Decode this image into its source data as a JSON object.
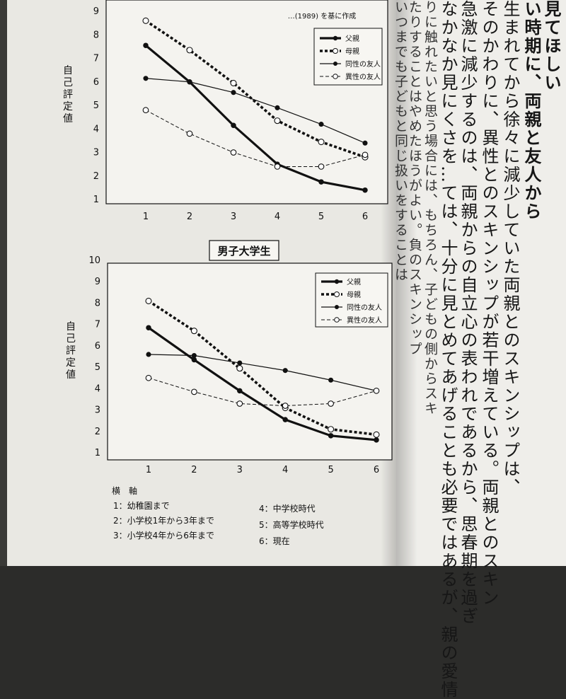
{
  "top_chart": {
    "source_note": "…(1989) を基に作成",
    "y_label": "自己評定値",
    "legend": [
      "父親",
      "母親",
      "同性の友人",
      "異性の友人"
    ]
  },
  "bottom_chart": {
    "title": "男子大学生",
    "y_label": "自己評定値",
    "legend": [
      "父親",
      "母親",
      "同性の友人",
      "異性の友人"
    ]
  },
  "x_axis_caption": {
    "heading": "横　軸",
    "items": [
      "1：幼稚園まで",
      "2：小学校1年から3年まで",
      "3：小学校4年から6年まで",
      "4：中学校時代",
      "5：高等学校時代",
      "6：現在"
    ]
  },
  "chart_data": [
    {
      "type": "line",
      "x": [
        1,
        2,
        3,
        4,
        5,
        6
      ],
      "ylim": [
        1,
        9
      ],
      "series": [
        {
          "name": "父親",
          "values": [
            7.55,
            6.0,
            4.15,
            2.5,
            1.75,
            1.4
          ]
        },
        {
          "name": "母親",
          "values": [
            8.6,
            7.35,
            5.95,
            4.35,
            3.45,
            2.8
          ]
        },
        {
          "name": "同性の友人",
          "values": [
            6.15,
            6.0,
            5.55,
            4.9,
            4.2,
            3.4
          ]
        },
        {
          "name": "異性の友人",
          "values": [
            4.8,
            3.8,
            3.0,
            2.4,
            2.4,
            2.9
          ]
        }
      ]
    },
    {
      "type": "line",
      "title": "男子大学生",
      "x": [
        1,
        2,
        3,
        4,
        5,
        6
      ],
      "ylim": [
        1,
        10
      ],
      "series": [
        {
          "name": "父親",
          "values": [
            6.85,
            5.35,
            3.9,
            2.55,
            1.8,
            1.6
          ]
        },
        {
          "name": "母親",
          "values": [
            8.1,
            6.7,
            4.95,
            3.1,
            2.1,
            1.85
          ]
        },
        {
          "name": "同性の友人",
          "values": [
            5.6,
            5.55,
            5.2,
            4.85,
            4.4,
            3.9
          ]
        },
        {
          "name": "異性の友人",
          "values": [
            4.5,
            3.85,
            3.3,
            3.2,
            3.3,
            3.9
          ]
        }
      ]
    }
  ],
  "right_page": {
    "columns": [
      "見てほしい",
      "い時期に、両親と友人から",
      "生まれてから徐々に減少していた両親とのスキンシップは、",
      "そのかわりに、異性とのスキンシップが若干増えている。両親とのスキン",
      "急激に減少するのは、両親からの自立心の表われであるから、思春期を過ぎ",
      "なかなか見にくさを…ては、十分に見とめてあげることも必要ではあるが、親の愛情",
      "りに触れたいと思う場合には、もちろん、子どもの側からスキ",
      "たりすることはやめたほうがよい。負のスキンシップ",
      "いつまでも子どもと同じ扱いをすることは"
    ]
  }
}
